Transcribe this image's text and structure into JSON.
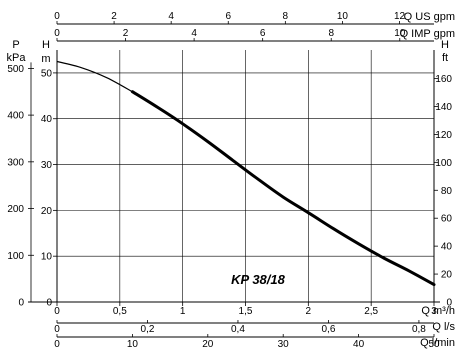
{
  "chart_data": {
    "type": "line",
    "annotation": "KP 38/18",
    "series": [
      {
        "name": "KP 38/18",
        "x": [
          0,
          0.2,
          0.4,
          0.6,
          0.8,
          1.0,
          1.2,
          1.4,
          1.6,
          1.8,
          2.0,
          2.2,
          2.4,
          2.6,
          2.8,
          3.0
        ],
        "y": [
          52.5,
          51.1,
          48.9,
          45.9,
          42.5,
          38.9,
          35.0,
          30.9,
          26.8,
          22.9,
          19.5,
          16.0,
          12.7,
          9.6,
          6.8,
          3.8
        ]
      }
    ],
    "xlim": [
      0,
      3
    ],
    "ylim": [
      0,
      55
    ],
    "grid": true,
    "axes": {
      "left_outer": {
        "label_top": "P",
        "label_unit": "kPa",
        "ticks": [
          "0",
          "100",
          "200",
          "300",
          "400",
          "500"
        ],
        "values": [
          0,
          100,
          200,
          300,
          400,
          500
        ]
      },
      "left_inner": {
        "label_top": "H",
        "label_unit": "m",
        "ticks": [
          "0",
          "10",
          "20",
          "30",
          "40",
          "50"
        ],
        "values": [
          0,
          10,
          20,
          30,
          40,
          50
        ]
      },
      "right": {
        "label_top": "H",
        "label_unit": "ft",
        "ticks": [
          "0",
          "20",
          "40",
          "60",
          "80",
          "100",
          "120",
          "140",
          "160"
        ],
        "values": [
          0,
          20,
          40,
          60,
          80,
          100,
          120,
          140,
          160
        ]
      },
      "bottom_m3h": {
        "label": "Q m³/h",
        "ticks": [
          "0",
          "0,5",
          "1",
          "1,5",
          "2",
          "2,5",
          "3"
        ],
        "values": [
          0,
          0.5,
          1,
          1.5,
          2,
          2.5,
          3
        ]
      },
      "bottom_ls": {
        "label": "Q l/s",
        "ticks": [
          "0",
          "0,2",
          "0,4",
          "0,6",
          "0,8"
        ],
        "values": [
          0,
          0.2,
          0.4,
          0.6,
          0.8
        ]
      },
      "bottom_lmin": {
        "label": "Q l/min",
        "ticks": [
          "0",
          "10",
          "20",
          "30",
          "40",
          "50"
        ],
        "values": [
          0,
          10,
          20,
          30,
          40,
          50
        ]
      },
      "top_usgpm": {
        "label": "Q US gpm",
        "ticks": [
          "0",
          "2",
          "4",
          "6",
          "8",
          "10",
          "12"
        ],
        "values": [
          0,
          2,
          4,
          6,
          8,
          10,
          12
        ]
      },
      "top_impgpm": {
        "label": "Q IMP gpm",
        "ticks": [
          "0",
          "2",
          "4",
          "6",
          "8",
          "10"
        ],
        "values": [
          0,
          2,
          4,
          6,
          8,
          10
        ]
      }
    }
  }
}
